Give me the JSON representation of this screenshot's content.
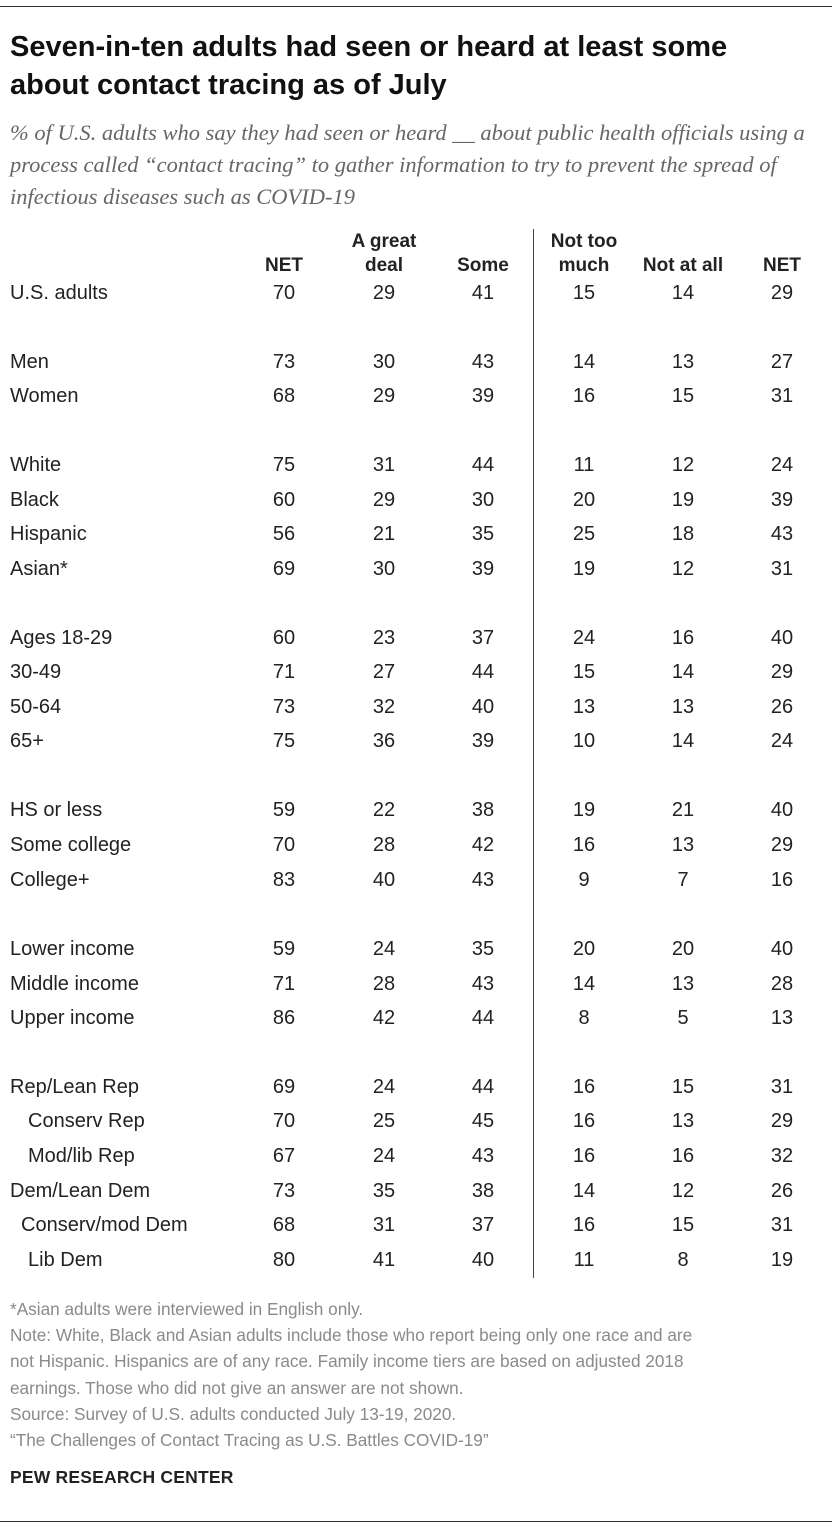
{
  "title": "Seven-in-ten adults had seen or heard at least some about contact tracing as of July",
  "subtitle": "% of U.S. adults who say they had seen or heard __ about public health officials using a process called “contact tracing” to gather information to try to prevent the spread of infectious diseases such as COVID-19",
  "chart_data": {
    "type": "table",
    "columns": [
      "NET",
      "A great deal",
      "Some",
      "Not too much",
      "Not at all",
      "NET"
    ],
    "rows": [
      {
        "label": "U.S. adults",
        "values": [
          70,
          29,
          41,
          15,
          14,
          29
        ]
      },
      {
        "label": "Men",
        "values": [
          73,
          30,
          43,
          14,
          13,
          27
        ]
      },
      {
        "label": "Women",
        "values": [
          68,
          29,
          39,
          16,
          15,
          31
        ]
      },
      {
        "label": "White",
        "values": [
          75,
          31,
          44,
          11,
          12,
          24
        ]
      },
      {
        "label": "Black",
        "values": [
          60,
          29,
          30,
          20,
          19,
          39
        ]
      },
      {
        "label": "Hispanic",
        "values": [
          56,
          21,
          35,
          25,
          18,
          43
        ]
      },
      {
        "label": "Asian*",
        "values": [
          69,
          30,
          39,
          19,
          12,
          31
        ]
      },
      {
        "label": "Ages 18-29",
        "values": [
          60,
          23,
          37,
          24,
          16,
          40
        ]
      },
      {
        "label": "30-49",
        "values": [
          71,
          27,
          44,
          15,
          14,
          29
        ]
      },
      {
        "label": "50-64",
        "values": [
          73,
          32,
          40,
          13,
          13,
          26
        ]
      },
      {
        "label": "65+",
        "values": [
          75,
          36,
          39,
          10,
          14,
          24
        ]
      },
      {
        "label": "HS or less",
        "values": [
          59,
          22,
          38,
          19,
          21,
          40
        ]
      },
      {
        "label": "Some college",
        "values": [
          70,
          28,
          42,
          16,
          13,
          29
        ]
      },
      {
        "label": "College+",
        "values": [
          83,
          40,
          43,
          9,
          7,
          16
        ]
      },
      {
        "label": "Lower income",
        "values": [
          59,
          24,
          35,
          20,
          20,
          40
        ]
      },
      {
        "label": "Middle income",
        "values": [
          71,
          28,
          43,
          14,
          13,
          28
        ]
      },
      {
        "label": "Upper income",
        "values": [
          86,
          42,
          44,
          8,
          5,
          13
        ]
      },
      {
        "label": "Rep/Lean Rep",
        "values": [
          69,
          24,
          44,
          16,
          15,
          31
        ]
      },
      {
        "label": "Conserv Rep",
        "values": [
          70,
          25,
          45,
          16,
          13,
          29
        ]
      },
      {
        "label": "Mod/lib Rep",
        "values": [
          67,
          24,
          43,
          16,
          16,
          32
        ]
      },
      {
        "label": "Dem/Lean Dem",
        "values": [
          73,
          35,
          38,
          14,
          12,
          26
        ]
      },
      {
        "label": "Conserv/mod Dem",
        "values": [
          68,
          31,
          37,
          16,
          15,
          31
        ]
      },
      {
        "label": "Lib Dem",
        "values": [
          80,
          41,
          40,
          11,
          8,
          19
        ]
      }
    ]
  },
  "footer": {
    "note1": "*Asian adults were interviewed in English only.",
    "note2_lines": [
      "Note: White, Black and Asian adults include those who report being only one race and are",
      "not Hispanic. Hispanics are of any race. Family income tiers are based on adjusted 2018",
      "earnings. Those who did not give an answer are not shown."
    ],
    "source": "Source: Survey of U.S. adults conducted July 13-19, 2020.",
    "report": "“The Challenges of Contact Tracing as U.S. Battles COVID-19”"
  },
  "brand": "PEW RESEARCH CENTER"
}
